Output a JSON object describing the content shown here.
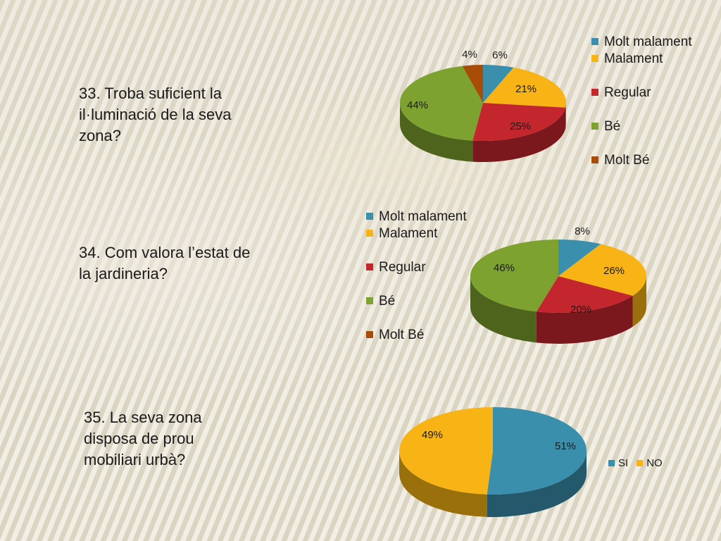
{
  "questions": {
    "q33": "33. Troba suficient la il·luminació de la seva zona?",
    "q34": "34. Com valora l’estat de la jardineria?",
    "q35": "35. La seva zona disposa de prou mobiliari urbà?"
  },
  "colors": {
    "Molt malament": "#3a8fad",
    "Malament": "#f8b415",
    "Regular": "#c4262e",
    "Bé": "#7ea22f",
    "Molt Bé": "#a84d07",
    "SI": "#3a8fad",
    "NO": "#f8b415"
  },
  "chart_data": [
    {
      "type": "pie",
      "question": "33. Troba suficient la il·luminació de la seva zona?",
      "categories": [
        "Molt malament",
        "Malament",
        "Regular",
        "Bé",
        "Molt Bé"
      ],
      "values": [
        6,
        21,
        25,
        44,
        4
      ],
      "labels": [
        "6%",
        "21%",
        "25%",
        "44%",
        "4%"
      ],
      "legend_position": "right"
    },
    {
      "type": "pie",
      "question": "34. Com valora l’estat de la jardineria?",
      "categories": [
        "Molt malament",
        "Malament",
        "Regular",
        "Bé",
        "Molt Bé"
      ],
      "values": [
        8,
        26,
        20,
        46,
        0
      ],
      "labels": [
        "8%",
        "26%",
        "20%",
        "46%"
      ],
      "legend_position": "left"
    },
    {
      "type": "pie",
      "question": "35. La seva zona disposa de prou mobiliari urbà?",
      "categories": [
        "SI",
        "NO"
      ],
      "values": [
        51,
        49
      ],
      "labels": [
        "51%",
        "49%"
      ],
      "legend_position": "right"
    }
  ]
}
